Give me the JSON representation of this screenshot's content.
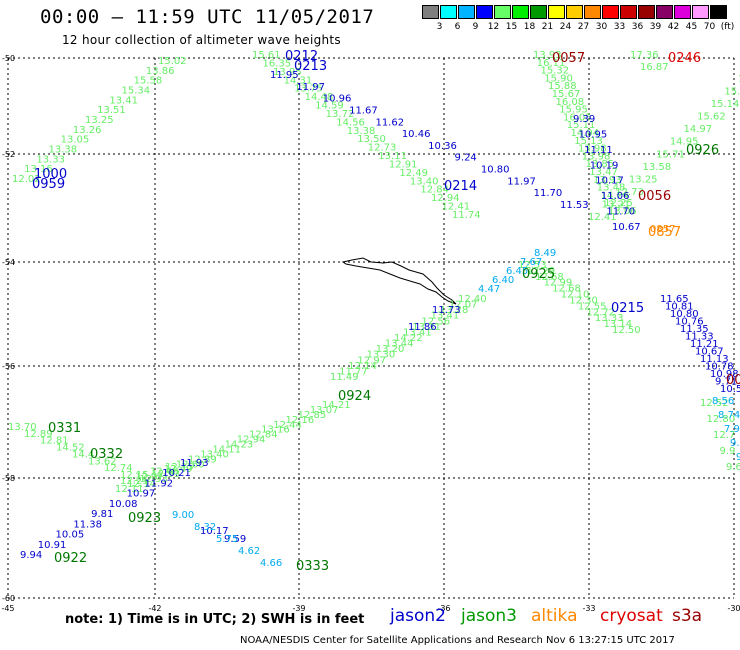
{
  "header": {
    "title": "00:00 — 11:59 UTC 11/05/2017",
    "subtitle": "12 hour collection of altimeter wave heights"
  },
  "color_scale": {
    "labels": [
      "3",
      "6",
      "9",
      "12",
      "15",
      "18",
      "21",
      "24",
      "27",
      "30",
      "33",
      "36",
      "39",
      "42",
      "45",
      "70",
      "(ft)"
    ],
    "colors": [
      "#7f7f7f",
      "#00ffff",
      "#00b4ff",
      "#0000ff",
      "#66ff66",
      "#00ee00",
      "#009900",
      "#ffff00",
      "#ffcc00",
      "#ff8800",
      "#ff0000",
      "#cc0000",
      "#990000",
      "#880066",
      "#dd00dd",
      "#ff99ff",
      "#000000"
    ]
  },
  "axes": {
    "y_labels": [
      "-50",
      "-52",
      "-54",
      "-56",
      "-58",
      "-60"
    ],
    "x_labels": [
      "-45",
      "-42",
      "-39",
      "-36",
      "-33",
      "-30"
    ]
  },
  "tracks": [
    {
      "color": "#66ee66",
      "labels": [
        "12.02",
        "13.16",
        "13.33",
        "13.38",
        "13.05",
        "13.26",
        "13.25",
        "13.51",
        "13.41",
        "15.34",
        "15.58",
        "13.86",
        "15.02"
      ]
    },
    {
      "color": "#66ee66",
      "labels": [
        "15.61",
        "16.35",
        "13.95",
        "14.31",
        "13.75",
        "14.48",
        "14.59",
        "13.72",
        "14.56",
        "13.38",
        "13.50",
        "12.73",
        "13.11",
        "12.91",
        "12.49",
        "13.40",
        "12.84",
        "12.94",
        "12.41",
        "11.74"
      ]
    },
    {
      "color": "#66ee66",
      "labels": [
        "13.93",
        "16.11",
        "15.32",
        "15.90",
        "15.88",
        "15.67",
        "16.08",
        "15.95",
        "16.05",
        "15.11",
        "14.94",
        "15.13",
        "13.98",
        "13.98",
        "13.85",
        "13.47",
        "13.93",
        "13.48",
        "14.24",
        "12.25",
        "13.06"
      ]
    },
    {
      "color": "#66ee66",
      "labels": [
        "17.36",
        "16.87"
      ]
    },
    {
      "color": "#66ee66",
      "labels": [
        "17",
        "15.8",
        "15.14",
        "15.62",
        "14.97",
        "14.95",
        "15.71",
        "13.58",
        "13.25",
        "12.73",
        "13.21",
        "12.41"
      ]
    },
    {
      "color": "#66ee66",
      "labels": [
        "12.53",
        "12.29",
        "12.68",
        "12.99",
        "12.68",
        "12.10",
        "12.30",
        "12.55",
        "12.72",
        "13.33",
        "13.14",
        "12.50"
      ]
    },
    {
      "color": "#66ee66",
      "labels": [
        "12.40",
        "12.07",
        "13.28",
        "13.41",
        "12.56",
        "13.31",
        "13.41",
        "14.22",
        "13.44",
        "13.20",
        "13.30",
        "12.97",
        "12.14",
        "11.77",
        "11.49"
      ]
    },
    {
      "color": "#66ee66",
      "labels": [
        "12.11",
        "12.14",
        "12.93",
        "12.93",
        "12.49",
        "12.60",
        "12.89",
        "13.40",
        "14.11",
        "14.23",
        "12.94",
        "12.84",
        "13.16",
        "12.44",
        "12.16",
        "12.85",
        "13.07",
        "14.21"
      ]
    },
    {
      "color": "#66ee66",
      "labels": [
        "13.70",
        "12.89",
        "12.81",
        "14.52",
        "14.4",
        "13.62",
        "12.74",
        "12.15"
      ]
    },
    {
      "color": "#66ee66",
      "labels": [
        "12.21",
        "12.07",
        "12.48",
        "12.15"
      ]
    },
    {
      "color": "#66ee66",
      "labels": [
        "12.52",
        "12.80",
        "12.7",
        "9.9",
        "9.61"
      ]
    },
    {
      "color": "#0000cc",
      "labels": [
        "11.95",
        "11.97",
        "10.96",
        "11.67",
        "11.62",
        "10.46",
        "10.36",
        "9.24",
        "10.80",
        "11.97",
        "11.70",
        "11.53"
      ]
    },
    {
      "color": "#0000cc",
      "labels": [
        "9.39",
        "10.95",
        "11.11",
        "10.19",
        "10.17",
        "11.06",
        "11.70",
        "10.67"
      ]
    },
    {
      "color": "#0000cc",
      "labels": [
        "11.65",
        "10.81",
        "10.80",
        "10.76",
        "11.35",
        "11.33",
        "11.21",
        "10.67",
        "11.13",
        "10.78",
        "10.98",
        "9.71",
        "10.55"
      ]
    },
    {
      "color": "#0000cc",
      "labels": [
        "11.73",
        "11.86"
      ]
    },
    {
      "color": "#0000cc",
      "labels": [
        "9.94",
        "10.91",
        "10.05",
        "11.38",
        "9.81",
        "10.08",
        "10.97",
        "11.92",
        "10.21",
        "11.93"
      ]
    },
    {
      "color": "#0000cc",
      "labels": [
        "10.17",
        "9.59"
      ]
    },
    {
      "color": "#00aaee",
      "labels": [
        "4.47",
        "6.40",
        "6.45",
        "7.67",
        "8.49",
        "9.00",
        "8.32",
        "5.75",
        "4.62",
        "4.66",
        "8.56",
        "8.74",
        "7.90",
        "9.4",
        "9."
      ]
    },
    {
      "color": "#ff8800",
      "labels": [
        "0857"
      ]
    }
  ],
  "pass_times": [
    {
      "label": "0212",
      "color": "#0000cc"
    },
    {
      "label": "0213",
      "color": "#0000cc"
    },
    {
      "label": "0057",
      "color": "#990000"
    },
    {
      "label": "0246",
      "color": "#dd0000"
    },
    {
      "label": "1000",
      "color": "#0000cc"
    },
    {
      "label": "0959",
      "color": "#0000cc"
    },
    {
      "label": "0926",
      "color": "#007700"
    },
    {
      "label": "0214",
      "color": "#0000cc"
    },
    {
      "label": "0056",
      "color": "#990000"
    },
    {
      "label": "0857",
      "color": "#ff8800"
    },
    {
      "label": "0925",
      "color": "#007700"
    },
    {
      "label": "0215",
      "color": "#0000cc"
    },
    {
      "label": "00",
      "color": "#990000"
    },
    {
      "label": "0924",
      "color": "#007700"
    },
    {
      "label": "0331",
      "color": "#007700"
    },
    {
      "label": "0332",
      "color": "#007700"
    },
    {
      "label": "0923",
      "color": "#007700"
    },
    {
      "label": "0922",
      "color": "#007700"
    },
    {
      "label": "0333",
      "color": "#007700"
    }
  ],
  "legend": [
    {
      "label": "jason2",
      "color": "#0000cc"
    },
    {
      "label": "jason3",
      "color": "#009900"
    },
    {
      "label": "altika",
      "color": "#ff8800"
    },
    {
      "label": "cryosat",
      "color": "#dd0000"
    },
    {
      "label": "s3a",
      "color": "#990000"
    }
  ],
  "footer": {
    "note": "note: 1) Time is in UTC; 2) SWH is in feet",
    "credit": "NOAA/NESDIS Center for Satellite Applications and Research    Nov  6 13:27:15 UTC 2017"
  }
}
